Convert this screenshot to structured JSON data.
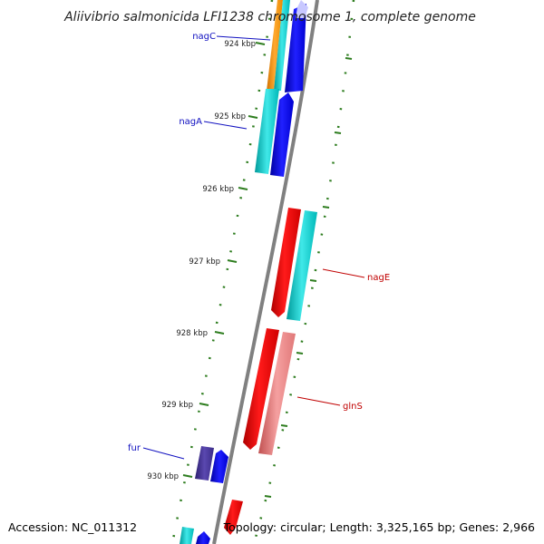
{
  "title": "Aliivibrio salmonicida LFI1238 chromosome 1, complete genome",
  "accession": "Accession: NC_011312",
  "topology": "Topology: circular; Length: 3,325,165 bp; Genes: 2,966",
  "colors": {
    "backbone": "#808080",
    "tick": "#2e7d1f",
    "forward_label": "#1010c0",
    "reverse_label": "#c00000",
    "red": "#ff0000",
    "pink": "#f08080",
    "cyan": "#00cccc",
    "blue": "#0000ee",
    "orange": "#ff9900",
    "indigo": "#4b3a9a",
    "light_blue": "#c8c8ff"
  },
  "positions": [
    {
      "label": "924 kbp"
    },
    {
      "label": "925 kbp"
    },
    {
      "label": "926 kbp"
    },
    {
      "label": "927 kbp"
    },
    {
      "label": "928 kbp"
    },
    {
      "label": "929 kbp"
    },
    {
      "label": "930 kbp"
    }
  ],
  "gene_labels": [
    {
      "label": "nagC",
      "strand": "forward"
    },
    {
      "label": "nagA",
      "strand": "forward"
    },
    {
      "label": "nagE",
      "strand": "reverse"
    },
    {
      "label": "glnS",
      "strand": "reverse"
    },
    {
      "label": "fur",
      "strand": "forward"
    }
  ]
}
